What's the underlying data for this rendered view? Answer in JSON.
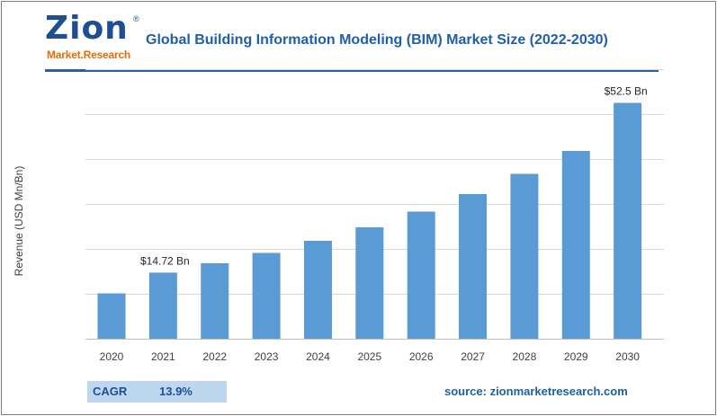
{
  "brand": {
    "logo_main": "Zion",
    "logo_sub": "Market.Research",
    "logo_mark": "®"
  },
  "header": {
    "title": "Global Building Information Modeling (BIM) Market Size (2022-2030)"
  },
  "footer": {
    "cagr_label": "CAGR",
    "cagr_value": "13.9%",
    "source": "source: zionmarketresearch.com"
  },
  "colors": {
    "bar": "#5b9bd5",
    "title": "#1f5faa",
    "rule": "#2d5fa6",
    "cagr_bg": "#bdd7ee"
  },
  "chart_data": {
    "type": "bar",
    "title": "Global Building Information Modeling (BIM) Market Size (2022-2030)",
    "xlabel": "",
    "ylabel": "Revenue (USD Mn/Bn)",
    "categories": [
      "2020",
      "2021",
      "2022",
      "2023",
      "2024",
      "2025",
      "2026",
      "2027",
      "2028",
      "2029",
      "2030"
    ],
    "values": [
      10.1,
      14.72,
      16.8,
      19.1,
      21.8,
      24.8,
      28.3,
      32.2,
      36.7,
      41.8,
      52.5
    ],
    "ylim": [
      0,
      60
    ],
    "gridlines": [
      0,
      10,
      20,
      30,
      40,
      50,
      60
    ],
    "grid": true,
    "y_tick_labels_visible": false,
    "data_labels": [
      {
        "category": "2021",
        "text": "$14.72 Bn"
      },
      {
        "category": "2030",
        "text": "$52.5 Bn"
      }
    ]
  }
}
